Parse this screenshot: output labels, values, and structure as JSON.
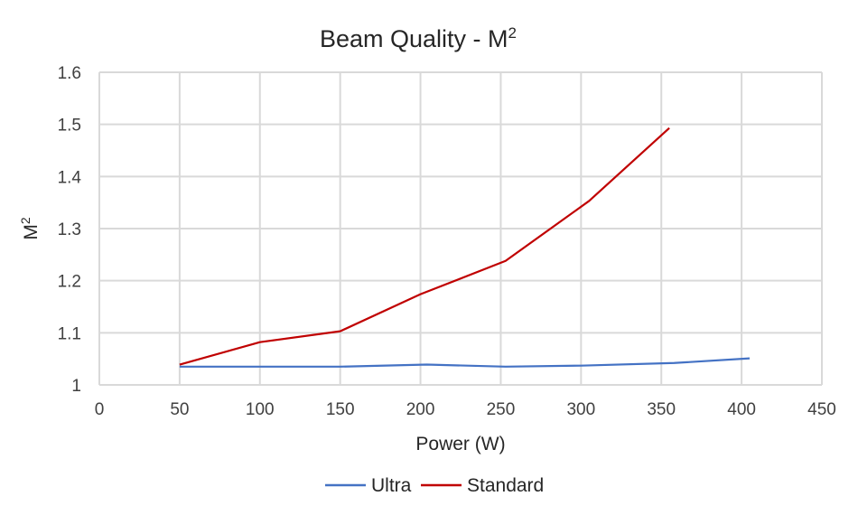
{
  "chart_data": {
    "type": "line",
    "title": "Beam Quality - M",
    "title_superscript": "2",
    "xlabel": "Power (W)",
    "ylabel": "M",
    "ylabel_superscript": "2",
    "xlim": [
      0,
      450
    ],
    "ylim": [
      1,
      1.6
    ],
    "xticks": [
      0,
      50,
      100,
      150,
      200,
      250,
      300,
      350,
      400,
      450
    ],
    "yticks": [
      1,
      1.1,
      1.2,
      1.3,
      1.4,
      1.5,
      1.6
    ],
    "ytick_labels": [
      "1",
      "1.1",
      "1.2",
      "1.3",
      "1.4",
      "1.5",
      "1.6"
    ],
    "grid": true,
    "legend_position": "bottom",
    "series": [
      {
        "name": "Ultra",
        "color": "#4472C4",
        "x": [
          50,
          100,
          150,
          204,
          253,
          300,
          358,
          405
        ],
        "y": [
          1.035,
          1.035,
          1.035,
          1.039,
          1.035,
          1.037,
          1.042,
          1.051
        ]
      },
      {
        "name": "Standard",
        "color": "#C00000",
        "x": [
          50,
          100,
          150,
          200,
          253,
          305,
          355
        ],
        "y": [
          1.039,
          1.082,
          1.103,
          1.174,
          1.238,
          1.353,
          1.493
        ]
      }
    ]
  }
}
